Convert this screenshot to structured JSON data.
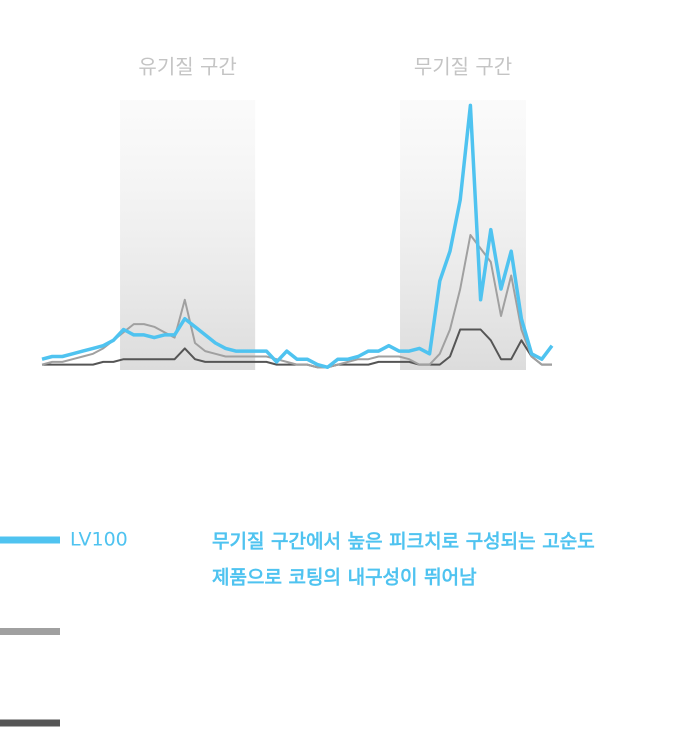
{
  "chart_data": {
    "type": "line",
    "regions": [
      {
        "label": "유기질 구간",
        "xlim": [
          15.3,
          41.8
        ]
      },
      {
        "label": "무기질 구간",
        "xlim": [
          70.2,
          94.9
        ]
      }
    ],
    "x": [
      0,
      2,
      4,
      6,
      8,
      10,
      12,
      14,
      16,
      18,
      20,
      22,
      24,
      26,
      28,
      30,
      32,
      34,
      36,
      38,
      40,
      42,
      44,
      46,
      48,
      50,
      52,
      54,
      56,
      58,
      60,
      62,
      64,
      66,
      68,
      70,
      72,
      74,
      76,
      78,
      80,
      82,
      84,
      86,
      88,
      90,
      92,
      94,
      96,
      98,
      100
    ],
    "xlim": [
      0,
      100
    ],
    "ylim": [
      0,
      100
    ],
    "series": [
      {
        "name": "LV100",
        "color": "#4fc3f0",
        "values": [
          4,
          5,
          5,
          6,
          7,
          8,
          9,
          11,
          15,
          13,
          13,
          12,
          13,
          13,
          19,
          16,
          13,
          10,
          8,
          7,
          7,
          7,
          7,
          3,
          7,
          4,
          4,
          2,
          1,
          4,
          4,
          5,
          7,
          7,
          9,
          7,
          7,
          8,
          6,
          33,
          44,
          63,
          98,
          26,
          52,
          30,
          44,
          19,
          6,
          4,
          9
        ]
      },
      {
        "color": "#a0a0a0",
        "values": [
          2,
          3,
          3,
          4,
          5,
          6,
          8,
          11,
          14,
          17,
          17,
          16,
          14,
          12,
          26,
          10,
          7,
          6,
          5,
          5,
          5,
          5,
          5,
          4,
          3,
          2,
          2,
          1,
          1,
          2,
          3,
          4,
          4,
          5,
          5,
          5,
          4,
          2,
          2,
          6,
          15,
          30,
          50,
          45,
          40,
          20,
          35,
          15,
          5,
          2,
          2
        ]
      },
      {
        "color": "#555555",
        "values": [
          2,
          2,
          2,
          2,
          2,
          2,
          3,
          3,
          4,
          4,
          4,
          4,
          4,
          4,
          8,
          4,
          3,
          3,
          3,
          3,
          3,
          3,
          3,
          2,
          2,
          2,
          2,
          1,
          1,
          2,
          2,
          2,
          2,
          3,
          3,
          3,
          3,
          2,
          2,
          2,
          5,
          15,
          15,
          15,
          11,
          4,
          4,
          11,
          5,
          2,
          2
        ]
      }
    ],
    "annotation": [
      "무기질 구간에서 높은 피크치로 구성되는 고순도",
      "제품으로 코팅의 내구성이 뛰어남"
    ]
  }
}
